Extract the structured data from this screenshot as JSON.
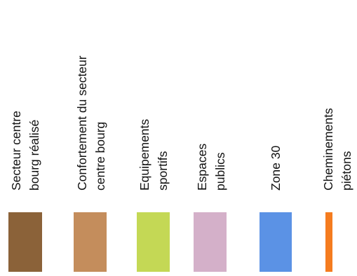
{
  "legend": {
    "items": [
      {
        "lines": [
          "Secteur centre",
          "bourg réalisé"
        ],
        "color": "#8b6239"
      },
      {
        "lines": [
          "Confortement du secteur",
          "centre bourg"
        ],
        "color": "#c48d5c"
      },
      {
        "lines": [
          "Equipements",
          "sportifs"
        ],
        "color": "#c4d855"
      },
      {
        "lines": [
          "Espaces",
          "publics"
        ],
        "color": "#d4b0c9"
      },
      {
        "lines": [
          "Zone 30"
        ],
        "color": "#5b92e5"
      },
      {
        "lines": [
          "Cheminements",
          "piétons"
        ],
        "color": "#f57c1f"
      }
    ]
  }
}
